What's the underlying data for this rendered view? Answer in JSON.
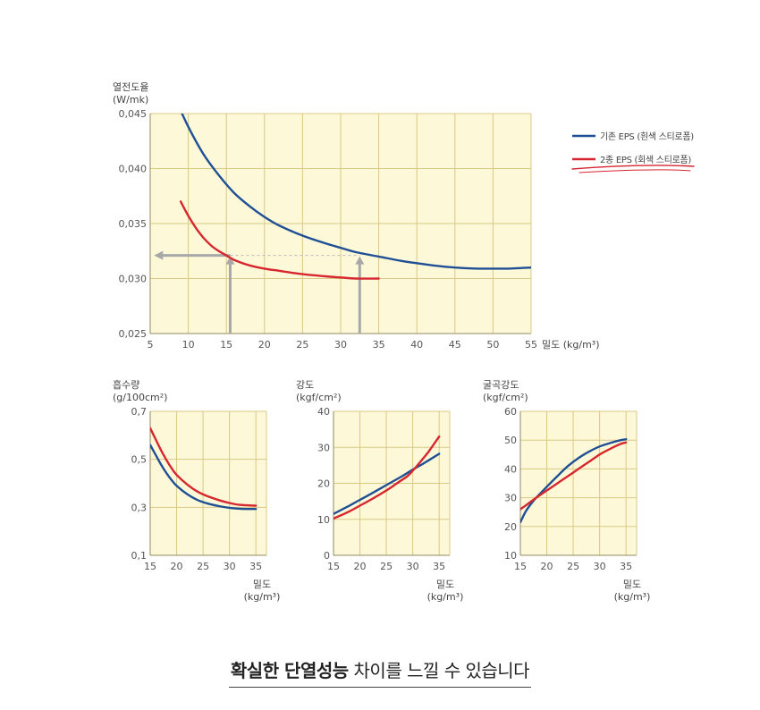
{
  "colors": {
    "series_a": "#1f4f94",
    "series_b": "#d6262f",
    "arrow": "#a8a8a8"
  },
  "legend": {
    "items": [
      {
        "label": "기존 EPS (흰색 스티로폼)",
        "color": "#1f4f94"
      },
      {
        "label": "2종 EPS (회색 스티로폼)",
        "color": "#d6262f"
      }
    ]
  },
  "caption": {
    "bold": "확실한 단열성능",
    "rest": " 차이를 느낄 수 있습니다"
  },
  "chart_data": [
    {
      "type": "line",
      "id": "thermal",
      "ylabel_line1": "열전도율",
      "ylabel_line2": "(W/mk)",
      "xlabel": "밀도 (kg/m³)",
      "xlim": [
        5,
        55
      ],
      "ylim": [
        0.025,
        0.045
      ],
      "xticks": [
        5,
        10,
        15,
        20,
        25,
        30,
        35,
        40,
        45,
        50,
        55
      ],
      "xtick_labels": [
        "5",
        "10",
        "15",
        "20",
        "25",
        "30",
        "35",
        "40",
        "45",
        "50",
        "55"
      ],
      "yticks": [
        0.025,
        0.03,
        0.035,
        0.04,
        0.045
      ],
      "ytick_labels": [
        "0,025",
        "0,030",
        "0,035",
        "0,040",
        "0,045"
      ],
      "grid": true,
      "series": [
        {
          "name": "기존 EPS (흰색 스티로폼)",
          "color": "#1f4f94",
          "x": [
            8,
            10,
            12,
            14,
            16,
            18,
            20,
            22,
            25,
            28,
            30,
            32,
            35,
            38,
            40,
            42,
            45,
            48,
            50,
            52,
            55
          ],
          "y": [
            0.0468,
            0.0438,
            0.0413,
            0.0394,
            0.0378,
            0.0366,
            0.0356,
            0.0348,
            0.0339,
            0.0332,
            0.0328,
            0.0324,
            0.032,
            0.0316,
            0.0314,
            0.0312,
            0.031,
            0.0309,
            0.0309,
            0.0309,
            0.031
          ]
        },
        {
          "name": "2종 EPS (회색 스티로폼)",
          "color": "#d6262f",
          "x": [
            9,
            10,
            11,
            12,
            13,
            14,
            15,
            16,
            18,
            20,
            22,
            25,
            28,
            30,
            32,
            35
          ],
          "y": [
            0.037,
            0.0357,
            0.0346,
            0.0337,
            0.033,
            0.0325,
            0.0321,
            0.0317,
            0.0312,
            0.0309,
            0.0307,
            0.0304,
            0.0302,
            0.0301,
            0.03,
            0.03
          ]
        }
      ],
      "annotations": {
        "dashed_y": 0.0321,
        "up_arrows_x": [
          15.5,
          32.5
        ],
        "left_arrow_from_x": 15.5,
        "left_arrow_to_x": 5.5
      }
    },
    {
      "type": "line",
      "id": "absorption",
      "ylabel_line1": "흡수량",
      "ylabel_line2": "(g/100cm²)",
      "xlabel_line1": "밀도",
      "xlabel_line2": "(kg/m³)",
      "xlim": [
        15,
        37
      ],
      "ylim": [
        0.1,
        0.7
      ],
      "xticks": [
        15,
        20,
        25,
        30,
        35
      ],
      "xtick_labels": [
        "15",
        "20",
        "25",
        "30",
        "35"
      ],
      "yticks": [
        0.1,
        0.3,
        0.5,
        0.7
      ],
      "ytick_labels": [
        "0,1",
        "0,3",
        "0,5",
        "0,7"
      ],
      "grid": true,
      "series": [
        {
          "name": "기존 EPS (흰색 스티로폼)",
          "color": "#1f4f94",
          "x": [
            15,
            16,
            17,
            18,
            19,
            20,
            22,
            24,
            26,
            28,
            30,
            32,
            35
          ],
          "y": [
            0.56,
            0.52,
            0.48,
            0.445,
            0.415,
            0.39,
            0.355,
            0.33,
            0.315,
            0.305,
            0.298,
            0.294,
            0.293
          ]
        },
        {
          "name": "2종 EPS (회색 스티로폼)",
          "color": "#d6262f",
          "x": [
            15,
            16,
            17,
            18,
            19,
            20,
            22,
            24,
            26,
            28,
            30,
            32,
            35
          ],
          "y": [
            0.63,
            0.585,
            0.54,
            0.5,
            0.465,
            0.435,
            0.395,
            0.365,
            0.345,
            0.33,
            0.318,
            0.31,
            0.307
          ]
        }
      ]
    },
    {
      "type": "line",
      "id": "strength",
      "ylabel_line1": "강도",
      "ylabel_line2": "(kgf/cm²)",
      "xlabel_line1": "밀도",
      "xlabel_line2": "(kg/m³)",
      "xlim": [
        15,
        37
      ],
      "ylim": [
        0,
        40
      ],
      "xticks": [
        15,
        20,
        25,
        30,
        35
      ],
      "xtick_labels": [
        "15",
        "20",
        "25",
        "30",
        "35"
      ],
      "yticks": [
        0,
        10,
        20,
        30,
        40
      ],
      "ytick_labels": [
        "0",
        "10",
        "20",
        "30",
        "40"
      ],
      "grid": true,
      "series": [
        {
          "name": "기존 EPS (흰색 스티로폼)",
          "color": "#1f4f94",
          "x": [
            15,
            18,
            20,
            22,
            25,
            28,
            30,
            32,
            35
          ],
          "y": [
            11.5,
            13.8,
            15.4,
            17.0,
            19.5,
            22.0,
            23.8,
            25.5,
            28.2
          ]
        },
        {
          "name": "2종 EPS (회색 스티로폼)",
          "color": "#d6262f",
          "x": [
            15,
            18,
            20,
            22,
            25,
            27,
            29,
            30,
            31,
            33,
            35
          ],
          "y": [
            10.2,
            12.2,
            13.8,
            15.4,
            18.0,
            20.0,
            22.0,
            23.5,
            25.2,
            28.8,
            33.0
          ]
        }
      ]
    },
    {
      "type": "line",
      "id": "flexural",
      "ylabel_line1": "굴곡강도",
      "ylabel_line2": "(kgf/cm²)",
      "xlabel_line1": "밀도",
      "xlabel_line2": "(kg/m³)",
      "xlim": [
        15,
        37
      ],
      "ylim": [
        10,
        60
      ],
      "xticks": [
        15,
        20,
        25,
        30,
        35
      ],
      "xtick_labels": [
        "15",
        "20",
        "25",
        "30",
        "35"
      ],
      "yticks": [
        10,
        20,
        30,
        40,
        50,
        60
      ],
      "ytick_labels": [
        "10",
        "20",
        "30",
        "40",
        "50",
        "60"
      ],
      "grid": true,
      "series": [
        {
          "name": "기존 EPS (흰색 스티로폼)",
          "color": "#1f4f94",
          "x": [
            15,
            16,
            17,
            18,
            20,
            22,
            24,
            26,
            28,
            30,
            32,
            34,
            35
          ],
          "y": [
            21.5,
            25.2,
            27.8,
            30.0,
            33.8,
            37.5,
            41.0,
            43.8,
            46.0,
            47.8,
            49.0,
            50.0,
            50.3
          ]
        },
        {
          "name": "2종 EPS (회색 스티로폼)",
          "color": "#d6262f",
          "x": [
            15,
            16,
            18,
            20,
            22,
            24,
            26,
            28,
            30,
            32,
            34,
            35
          ],
          "y": [
            26.0,
            27.3,
            30.0,
            32.5,
            35.0,
            37.5,
            40.0,
            42.5,
            45.0,
            47.0,
            48.7,
            49.2
          ]
        }
      ]
    }
  ]
}
